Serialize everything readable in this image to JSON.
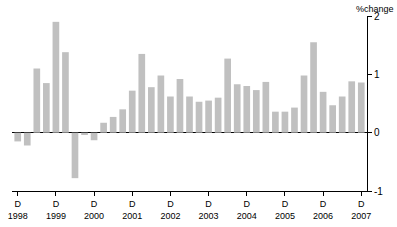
{
  "chart_data": {
    "type": "bar",
    "ylabel": "%change",
    "categories": [
      "D\n1998",
      null,
      null,
      null,
      "D\n1999",
      null,
      null,
      null,
      "D\n2000",
      null,
      null,
      null,
      "D\n2001",
      null,
      null,
      null,
      "D\n2002",
      null,
      null,
      null,
      "D\n2003",
      null,
      null,
      null,
      "D\n2004",
      null,
      null,
      null,
      "D\n2005",
      null,
      null,
      null,
      "D\n2006",
      null,
      null,
      null,
      "D\n2007"
    ],
    "values": [
      -0.15,
      -0.22,
      1.1,
      0.85,
      1.9,
      1.38,
      -0.78,
      -0.04,
      -0.13,
      0.17,
      0.27,
      0.4,
      0.72,
      1.35,
      0.78,
      0.98,
      0.62,
      0.92,
      0.62,
      0.53,
      0.55,
      0.6,
      1.27,
      0.83,
      0.8,
      0.73,
      0.87,
      0.36,
      0.36,
      0.43,
      0.98,
      1.55,
      0.7,
      0.47,
      0.62,
      0.88,
      0.86
    ],
    "color": "#c0c0c0",
    "ylim": [
      -1,
      2
    ],
    "yticks": [
      -1,
      0,
      1,
      2
    ],
    "grid": false
  }
}
